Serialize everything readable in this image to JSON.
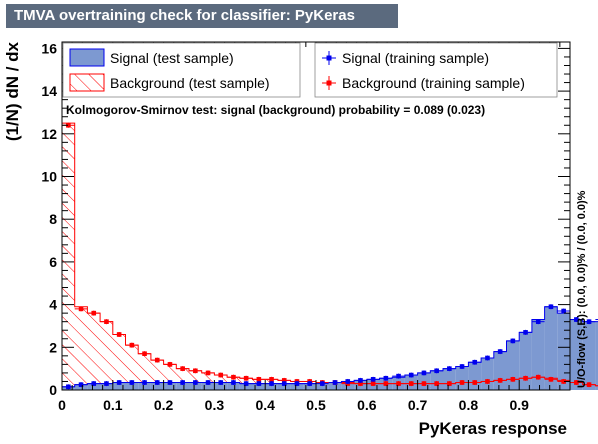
{
  "window": {
    "title": "TMVA overtraining check for classifier: PyKeras"
  },
  "chart_data": {
    "type": "histogram",
    "title": "TMVA overtraining check for classifier: PyKeras",
    "xlabel": "PyKeras response",
    "ylabel": "(1/N) dN / dx",
    "xlim": [
      0,
      1
    ],
    "ylim": [
      0,
      16.3
    ],
    "x_ticks": [
      "0",
      "0.1",
      "0.2",
      "0.3",
      "0.4",
      "0.5",
      "0.6",
      "0.7",
      "0.8",
      "0.9"
    ],
    "y_ticks": [
      "0",
      "2",
      "4",
      "6",
      "8",
      "10",
      "12",
      "14",
      "16"
    ],
    "bin_width": 0.025,
    "annotation": "Kolmogorov-Smirnov test: signal (background) probability = 0.089 (0.023)",
    "side_label": "U/O-flow (S,B): (0.0, 0.0)% / (0.0, 0.0)%",
    "colors": {
      "signal_fill": "#7d99d1",
      "signal_line": "#0000ee",
      "background_line": "#ff0000"
    },
    "legend": [
      {
        "label": "Signal (test sample)",
        "style": "filled"
      },
      {
        "label": "Background (test sample)",
        "style": "hatched"
      },
      {
        "label": "Signal (training sample)",
        "style": "marker"
      },
      {
        "label": "Background (training sample)",
        "style": "marker"
      }
    ],
    "series": [
      {
        "name": "Signal (test sample)",
        "values": [
          0.15,
          0.25,
          0.3,
          0.3,
          0.35,
          0.35,
          0.35,
          0.35,
          0.35,
          0.35,
          0.35,
          0.35,
          0.35,
          0.35,
          0.3,
          0.3,
          0.3,
          0.3,
          0.3,
          0.3,
          0.35,
          0.35,
          0.4,
          0.45,
          0.5,
          0.55,
          0.6,
          0.7,
          0.8,
          0.9,
          1.0,
          1.1,
          1.3,
          1.5,
          1.8,
          2.3,
          2.7,
          3.3,
          3.9,
          3.6,
          3.3,
          3.2,
          3.2,
          2.8
        ]
      },
      {
        "name": "Background (test sample)",
        "values": [
          12.5,
          3.9,
          3.6,
          3.2,
          2.6,
          2.1,
          1.7,
          1.4,
          1.2,
          1.0,
          0.9,
          0.8,
          0.7,
          0.6,
          0.55,
          0.5,
          0.5,
          0.45,
          0.4,
          0.4,
          0.35,
          0.35,
          0.35,
          0.3,
          0.3,
          0.3,
          0.3,
          0.3,
          0.3,
          0.3,
          0.3,
          0.35,
          0.35,
          0.4,
          0.45,
          0.5,
          0.55,
          0.6,
          0.55,
          0.45,
          0.35,
          0.25,
          0.2,
          0.15
        ]
      },
      {
        "name": "Signal (training sample)",
        "values": [
          0.15,
          0.25,
          0.3,
          0.3,
          0.35,
          0.35,
          0.35,
          0.35,
          0.35,
          0.35,
          0.35,
          0.35,
          0.35,
          0.35,
          0.3,
          0.3,
          0.3,
          0.3,
          0.3,
          0.3,
          0.3,
          0.35,
          0.4,
          0.45,
          0.5,
          0.55,
          0.65,
          0.7,
          0.8,
          0.9,
          1.0,
          1.1,
          1.3,
          1.5,
          1.8,
          2.3,
          2.7,
          3.2,
          3.9,
          3.7,
          3.3,
          3.2,
          3.3,
          2.7
        ]
      },
      {
        "name": "Background (training sample)",
        "values": [
          12.4,
          3.8,
          3.6,
          3.2,
          2.6,
          2.1,
          1.7,
          1.4,
          1.2,
          1.0,
          0.9,
          0.8,
          0.7,
          0.6,
          0.55,
          0.5,
          0.5,
          0.45,
          0.4,
          0.4,
          0.35,
          0.35,
          0.3,
          0.3,
          0.3,
          0.3,
          0.3,
          0.3,
          0.3,
          0.3,
          0.3,
          0.35,
          0.35,
          0.4,
          0.45,
          0.5,
          0.55,
          0.6,
          0.5,
          0.4,
          0.35,
          0.25,
          0.2,
          0.15
        ]
      }
    ]
  }
}
